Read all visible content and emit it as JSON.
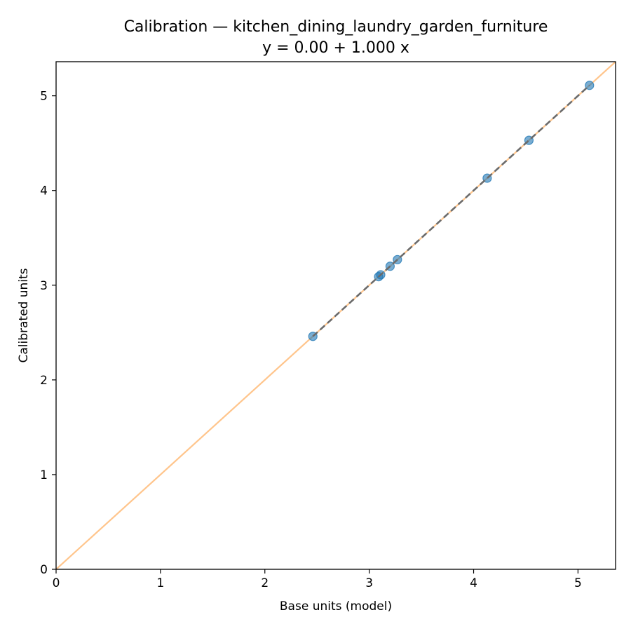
{
  "chart_data": {
    "type": "scatter",
    "title": "Calibration — kitchen_dining_laundry_garden_furniture",
    "subtitle": "y = 0.00 + 1.000 x",
    "xlabel": "Base units (model)",
    "ylabel": "Calibrated units",
    "xlim": [
      0,
      5.36
    ],
    "ylim": [
      0,
      5.36
    ],
    "xticks": [
      0,
      1,
      2,
      3,
      4,
      5
    ],
    "yticks": [
      0,
      1,
      2,
      3,
      4,
      5
    ],
    "grid": false,
    "points": {
      "x": [
        2.46,
        3.09,
        3.11,
        3.2,
        3.27,
        4.13,
        4.53,
        5.11
      ],
      "y": [
        2.46,
        3.09,
        3.11,
        3.2,
        3.27,
        4.13,
        4.53,
        5.11
      ]
    },
    "identity_line": {
      "x": [
        0,
        5.36
      ],
      "y": [
        0,
        5.36
      ]
    },
    "fit_line": {
      "intercept": 0.0,
      "slope": 1.0,
      "x_range": [
        2.46,
        5.11
      ]
    },
    "colors": {
      "points": "#1f77b4",
      "identity": "#ffbb78",
      "fit": "#6b6b6b",
      "axes": "#000000"
    }
  }
}
